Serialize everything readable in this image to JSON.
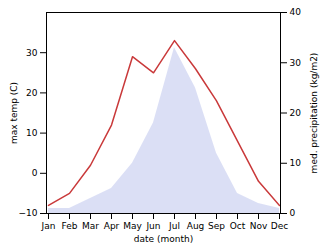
{
  "chart_data": {
    "type": "line",
    "xlabel": "date (month)",
    "ylabel": "max temp (C)",
    "y2label": "med. precipitation (kg/m2)",
    "categories": [
      "Jan",
      "Feb",
      "Mar",
      "Apr",
      "May",
      "Jun",
      "Jul",
      "Aug",
      "Sep",
      "Oct",
      "Nov",
      "Dec"
    ],
    "series": [
      {
        "type": "area",
        "axis": "y2",
        "color": "#b0b8e8",
        "values": [
          1,
          1,
          3,
          5,
          10,
          18,
          33,
          25,
          12,
          4,
          2,
          1
        ]
      },
      {
        "type": "line",
        "color": "#c9393a",
        "values": [
          -8,
          -5,
          2,
          12,
          29,
          25,
          33,
          26,
          18,
          8,
          -2,
          -8
        ]
      }
    ],
    "ylim": [
      -10,
      40
    ],
    "yticks": [
      -10,
      0,
      10,
      20,
      30
    ],
    "y2lim": [
      0,
      40
    ],
    "y2ticks": [
      0,
      10,
      20,
      30,
      40
    ]
  }
}
